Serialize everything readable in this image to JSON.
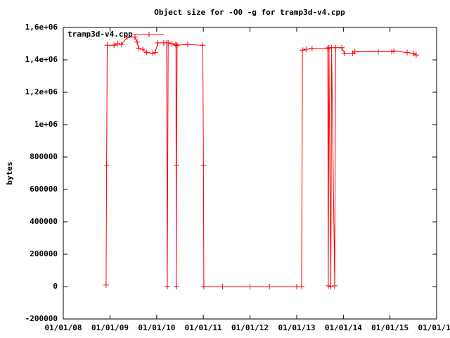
{
  "chart_data": {
    "type": "line",
    "title": "Object size for -O0 -g for tramp3d-v4.cpp",
    "y_label": "bytes",
    "x": [
      "12/01/08",
      "12/05/08",
      "12/10/08",
      "02/01/09",
      "03/01/09",
      "04/01/09",
      "05/15/09",
      "07/15/09",
      "08/01/09",
      "08/15/09",
      "09/15/09",
      "10/15/09",
      "12/01/09",
      "12/20/09",
      "01/10/10",
      "02/25/10",
      "03/20/10",
      "03/25/10",
      "04/01/10",
      "05/01/10",
      "05/30/10",
      "06/01/10",
      "06/03/10",
      "06/05/10",
      "06/10/10",
      "09/01/10",
      "12/28/10",
      "01/02/11",
      "01/05/11",
      "06/01/11",
      "01/01/12",
      "06/01/12",
      "01/01/13",
      "02/08/13",
      "02/15/13",
      "03/15/13",
      "05/01/13",
      "09/01/13",
      "09/05/13",
      "09/10/13",
      "09/25/13",
      "10/01/13",
      "10/25/13",
      "11/01/13",
      "12/20/13",
      "01/10/14",
      "03/15/14",
      "04/01/14",
      "10/01/14",
      "01/15/15",
      "02/01/15",
      "05/15/15",
      "07/01/15",
      "07/25/15"
    ],
    "series": [
      {
        "name": "tramp3d-v4.cpp",
        "color": "#ff0000",
        "values": [
          10000,
          750000,
          1490000,
          1490000,
          1500000,
          1495000,
          1540000,
          1540000,
          1510000,
          1470000,
          1465000,
          1445000,
          1440000,
          1445000,
          1505000,
          1505000,
          1505000,
          0,
          1505000,
          1500000,
          1495000,
          1490000,
          0,
          750000,
          1490000,
          1495000,
          1490000,
          750000,
          0,
          0,
          0,
          0,
          0,
          0,
          1460000,
          1465000,
          1470000,
          1470000,
          5000,
          1475000,
          0,
          1475000,
          5000,
          1475000,
          1475000,
          1440000,
          1440000,
          1450000,
          1450000,
          1450000,
          1455000,
          1445000,
          1440000,
          1430000
        ]
      }
    ],
    "xlim": [
      "01/01/08",
      "01/01/16"
    ],
    "xticks": [
      "01/01/08",
      "01/01/09",
      "01/01/10",
      "01/01/11",
      "01/01/12",
      "01/01/13",
      "01/01/14",
      "01/01/15",
      "01/01/16"
    ],
    "ylim": [
      -200000,
      1600000
    ],
    "yticks": [
      -200000,
      0,
      200000,
      400000,
      600000,
      800000,
      {
        "value": 1000000,
        "label": "1e+06"
      },
      {
        "value": 1200000,
        "label": "1,2e+06"
      },
      {
        "value": 1400000,
        "label": "1,4e+06"
      },
      {
        "value": 1600000,
        "label": "1,6e+06"
      }
    ],
    "grid": false,
    "legend": "top-left"
  }
}
